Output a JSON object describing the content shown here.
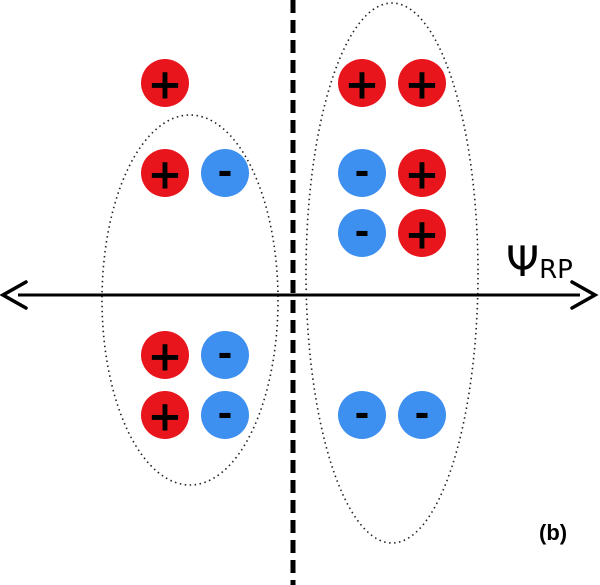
{
  "figure": {
    "panel_label": "(b)",
    "axis": {
      "symbol": "Ψ",
      "subscript": "RP"
    }
  },
  "colors": {
    "positive": "#e8161c",
    "negative": "#3d8ff0",
    "line": "#000000"
  },
  "charges": [
    {
      "sign": "+",
      "group": "outside-left"
    },
    {
      "sign": "+",
      "group": "left-top"
    },
    {
      "sign": "-",
      "group": "left-top"
    },
    {
      "sign": "+",
      "group": "left-bottom"
    },
    {
      "sign": "-",
      "group": "left-bottom"
    },
    {
      "sign": "+",
      "group": "left-bottom"
    },
    {
      "sign": "-",
      "group": "left-bottom"
    },
    {
      "sign": "+",
      "group": "right-top"
    },
    {
      "sign": "+",
      "group": "right-top"
    },
    {
      "sign": "-",
      "group": "right-top"
    },
    {
      "sign": "+",
      "group": "right-top"
    },
    {
      "sign": "-",
      "group": "right-top"
    },
    {
      "sign": "+",
      "group": "right-top"
    },
    {
      "sign": "-",
      "group": "right-bottom"
    },
    {
      "sign": "-",
      "group": "right-bottom"
    }
  ]
}
